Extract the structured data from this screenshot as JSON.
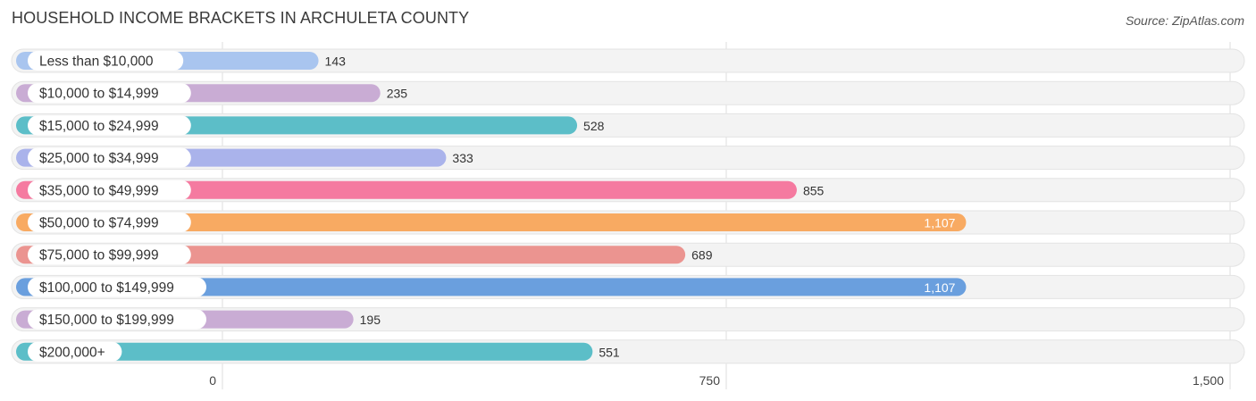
{
  "title": "HOUSEHOLD INCOME BRACKETS IN ARCHULETA COUNTY",
  "source": "Source: ZipAtlas.com",
  "chart_data": {
    "type": "bar",
    "orientation": "horizontal",
    "title": "HOUSEHOLD INCOME BRACKETS IN ARCHULETA COUNTY",
    "categories": [
      "Less than $10,000",
      "$10,000 to $14,999",
      "$15,000 to $24,999",
      "$25,000 to $34,999",
      "$35,000 to $49,999",
      "$50,000 to $74,999",
      "$75,000 to $99,999",
      "$100,000 to $149,999",
      "$150,000 to $199,999",
      "$200,000+"
    ],
    "values": [
      143,
      235,
      528,
      333,
      855,
      1107,
      689,
      1107,
      195,
      551
    ],
    "value_labels": [
      "143",
      "235",
      "528",
      "333",
      "855",
      "1,107",
      "689",
      "1,107",
      "195",
      "551"
    ],
    "colors": [
      "#a9c5ef",
      "#c9acd4",
      "#5cbec8",
      "#aab3eb",
      "#f57aa0",
      "#f8aa62",
      "#eb9490",
      "#6a9fde",
      "#c9acd4",
      "#5cbec8"
    ],
    "xlim": [
      0,
      1500
    ],
    "xticks": [
      0,
      750,
      1500
    ],
    "xtick_labels": [
      "0",
      "750",
      "1,500"
    ],
    "grid": true
  }
}
